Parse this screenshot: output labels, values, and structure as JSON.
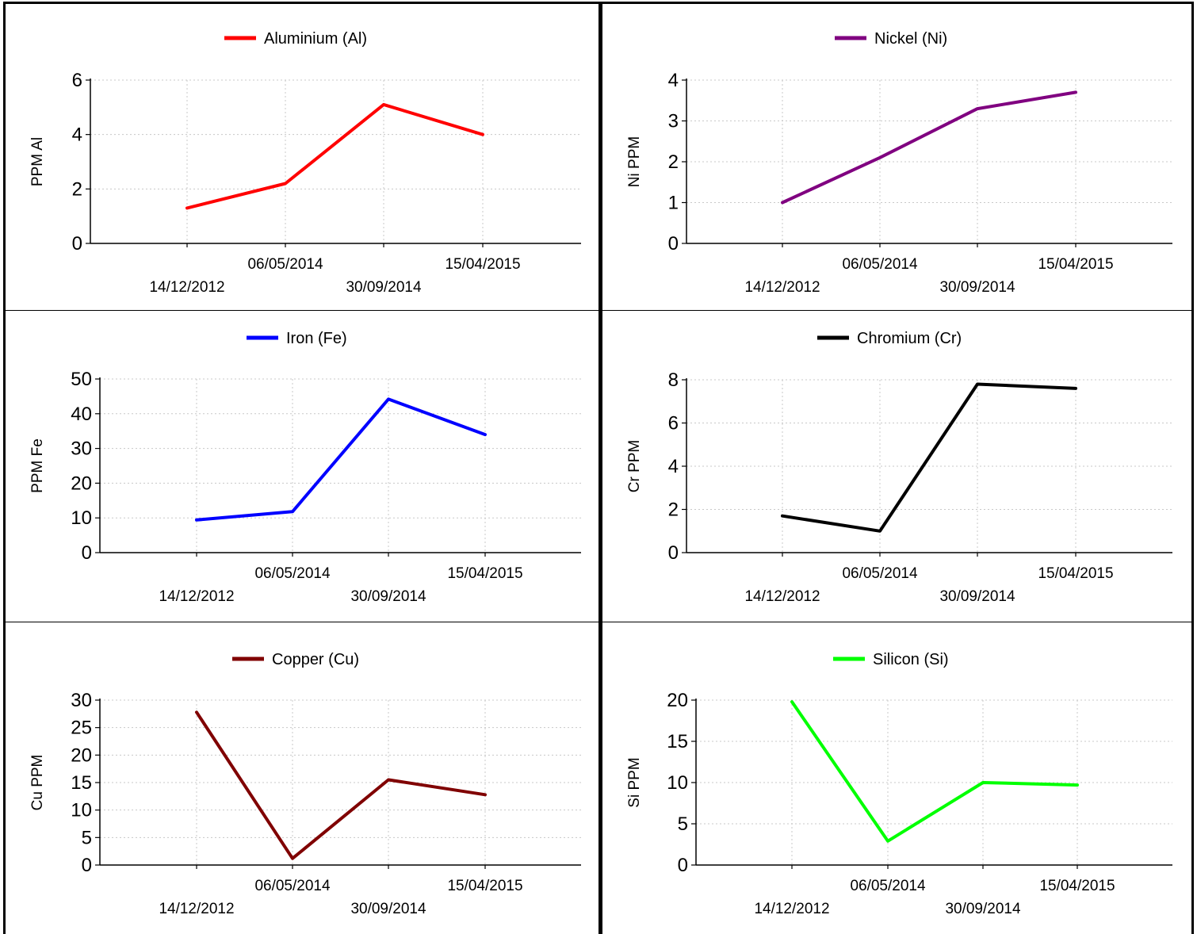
{
  "chart_data": [
    {
      "type": "line",
      "legend": "Aluminium (Al)",
      "ylabel": "PPM Al",
      "color": "#ff0000",
      "x_ticks": [
        "14/12/2012",
        "06/05/2014",
        "30/09/2014",
        "15/04/2015"
      ],
      "y_ticks": [
        "0",
        "2",
        "4",
        "6"
      ],
      "ylim": [
        0,
        6
      ],
      "grid": true,
      "legend_position": "top-center",
      "series": [
        {
          "name": "Aluminium (Al)",
          "x": [
            "14/12/2012",
            "06/05/2014",
            "30/09/2014",
            "15/04/2015"
          ],
          "values": [
            1.3,
            2.2,
            5.1,
            4.0
          ]
        }
      ]
    },
    {
      "type": "line",
      "legend": "Nickel (Ni)",
      "ylabel": "Ni PPM",
      "color": "#800080",
      "x_ticks": [
        "14/12/2012",
        "06/05/2014",
        "30/09/2014",
        "15/04/2015"
      ],
      "y_ticks": [
        "0",
        "1",
        "2",
        "3",
        "4"
      ],
      "ylim": [
        0,
        4
      ],
      "grid": true,
      "legend_position": "top-center",
      "series": [
        {
          "name": "Nickel (Ni)",
          "x": [
            "14/12/2012",
            "06/05/2014",
            "30/09/2014",
            "15/04/2015"
          ],
          "values": [
            1.0,
            2.1,
            3.3,
            3.7
          ]
        }
      ]
    },
    {
      "type": "line",
      "legend": "Iron (Fe)",
      "ylabel": "PPM Fe",
      "color": "#0000ff",
      "x_ticks": [
        "14/12/2012",
        "06/05/2014",
        "30/09/2014",
        "15/04/2015"
      ],
      "y_ticks": [
        "0",
        "10",
        "20",
        "30",
        "40",
        "50"
      ],
      "ylim": [
        0,
        50
      ],
      "grid": true,
      "legend_position": "top-center",
      "series": [
        {
          "name": "Iron (Fe)",
          "x": [
            "14/12/2012",
            "06/05/2014",
            "30/09/2014",
            "15/04/2015"
          ],
          "values": [
            9.4,
            11.8,
            44.2,
            34.0
          ]
        }
      ]
    },
    {
      "type": "line",
      "legend": "Chromium (Cr)",
      "ylabel": "Cr PPM",
      "color": "#000000",
      "x_ticks": [
        "14/12/2012",
        "06/05/2014",
        "30/09/2014",
        "15/04/2015"
      ],
      "y_ticks": [
        "0",
        "2",
        "4",
        "6",
        "8"
      ],
      "ylim": [
        0,
        8
      ],
      "grid": true,
      "legend_position": "top-center",
      "series": [
        {
          "name": "Chromium (Cr)",
          "x": [
            "14/12/2012",
            "06/05/2014",
            "30/09/2014",
            "15/04/2015"
          ],
          "values": [
            1.7,
            1.0,
            7.8,
            7.6
          ]
        }
      ]
    },
    {
      "type": "line",
      "legend": "Copper (Cu)",
      "ylabel": "Cu PPM",
      "color": "#800000",
      "x_ticks": [
        "14/12/2012",
        "06/05/2014",
        "30/09/2014",
        "15/04/2015"
      ],
      "y_ticks": [
        "0",
        "5",
        "10",
        "15",
        "20",
        "25",
        "30"
      ],
      "ylim": [
        0,
        30
      ],
      "grid": true,
      "legend_position": "top-center",
      "series": [
        {
          "name": "Copper (Cu)",
          "x": [
            "14/12/2012",
            "06/05/2014",
            "30/09/2014",
            "15/04/2015"
          ],
          "values": [
            27.8,
            1.2,
            15.5,
            12.8
          ]
        }
      ]
    },
    {
      "type": "line",
      "legend": "Silicon (Si)",
      "ylabel": "Si PPM",
      "color": "#00ff00",
      "x_ticks": [
        "14/12/2012",
        "06/05/2014",
        "30/09/2014",
        "15/04/2015"
      ],
      "y_ticks": [
        "0",
        "5",
        "10",
        "15",
        "20"
      ],
      "ylim": [
        0,
        20
      ],
      "grid": true,
      "legend_position": "top-center",
      "series": [
        {
          "name": "Silicon (Si)",
          "x": [
            "14/12/2012",
            "06/05/2014",
            "30/09/2014",
            "15/04/2015"
          ],
          "values": [
            19.8,
            2.9,
            10.0,
            9.7
          ]
        }
      ]
    }
  ]
}
